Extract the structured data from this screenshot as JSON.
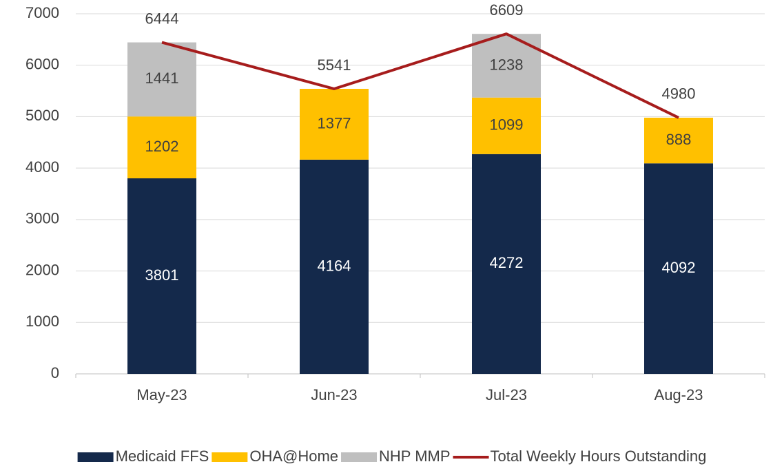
{
  "chart_data": {
    "type": "bar",
    "stacked": true,
    "categories": [
      "May-23",
      "Jun-23",
      "Jul-23",
      "Aug-23"
    ],
    "series": [
      {
        "name": "Medicaid FFS",
        "color": "#14294b",
        "values": [
          3801,
          4164,
          4272,
          4092
        ]
      },
      {
        "name": "OHA@Home",
        "color": "#ffc000",
        "values": [
          1202,
          1377,
          1099,
          888
        ]
      },
      {
        "name": "NHP MMP",
        "color": "#bfbfbf",
        "values": [
          1441,
          null,
          1238,
          null
        ]
      },
      {
        "name": "Total Weekly Hours Outstanding",
        "type": "line",
        "color": "#a61c1c",
        "values": [
          6444,
          5541,
          6609,
          4980
        ]
      }
    ],
    "ylim": [
      0,
      7000
    ],
    "yticks": [
      0,
      1000,
      2000,
      3000,
      4000,
      5000,
      6000,
      7000
    ],
    "grid": true,
    "legend": "bottom"
  }
}
